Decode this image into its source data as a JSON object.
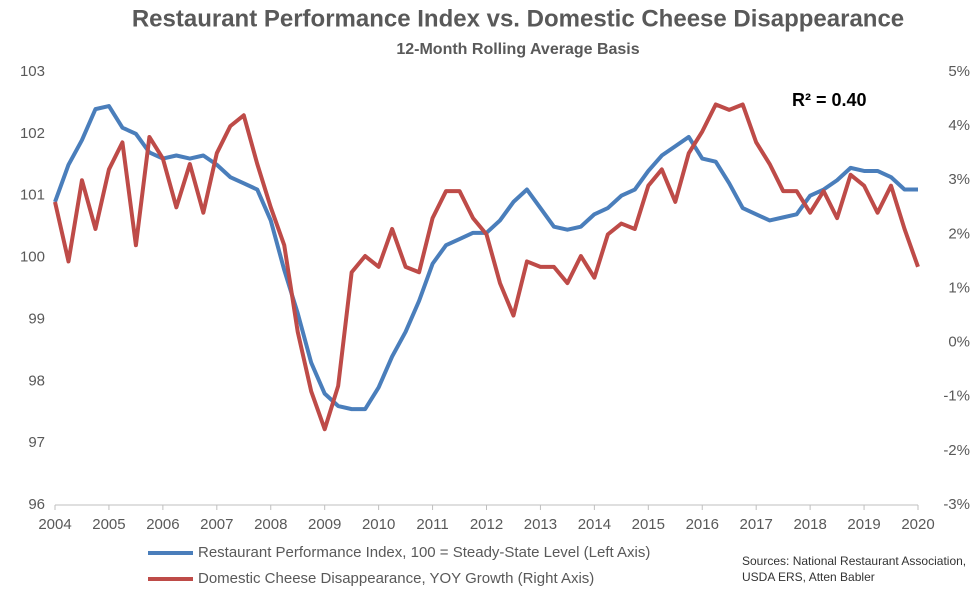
{
  "chart_data": {
    "type": "line",
    "title": "Restaurant Performance Index vs. Domestic Cheese Disappearance",
    "subtitle": "12-Month Rolling Average Basis",
    "annotation": "R² = 0.40",
    "source": "Sources: National Restaurant Association, USDA ERS, Atten Babler",
    "x": [
      2004,
      2004.25,
      2004.5,
      2004.75,
      2005,
      2005.25,
      2005.5,
      2005.75,
      2006,
      2006.25,
      2006.5,
      2006.75,
      2007,
      2007.25,
      2007.5,
      2007.75,
      2008,
      2008.25,
      2008.5,
      2008.75,
      2009,
      2009.25,
      2009.5,
      2009.75,
      2010,
      2010.25,
      2010.5,
      2010.75,
      2011,
      2011.25,
      2011.5,
      2011.75,
      2012,
      2012.25,
      2012.5,
      2012.75,
      2013,
      2013.25,
      2013.5,
      2013.75,
      2014,
      2014.25,
      2014.5,
      2014.75,
      2015,
      2015.25,
      2015.5,
      2015.75,
      2016,
      2016.25,
      2016.5,
      2016.75,
      2017,
      2017.25,
      2017.5,
      2017.75,
      2018,
      2018.25,
      2018.5,
      2018.75,
      2019,
      2019.25,
      2019.5,
      2019.75,
      2020
    ],
    "xlim": [
      2004,
      2020
    ],
    "xticks": [
      2004,
      2005,
      2006,
      2007,
      2008,
      2009,
      2010,
      2011,
      2012,
      2013,
      2014,
      2015,
      2016,
      2017,
      2018,
      2019,
      2020
    ],
    "ylim": [
      96,
      103
    ],
    "yticks": [
      96,
      97,
      98,
      99,
      100,
      101,
      102,
      103
    ],
    "y2lim": [
      -3,
      5
    ],
    "y2ticks": [
      {
        "value": -3,
        "label": "-3%"
      },
      {
        "value": -2,
        "label": "-2%"
      },
      {
        "value": -1,
        "label": "-1%"
      },
      {
        "value": 0,
        "label": "0%"
      },
      {
        "value": 1,
        "label": "1%"
      },
      {
        "value": 2,
        "label": "2%"
      },
      {
        "value": 3,
        "label": "3%"
      },
      {
        "value": 4,
        "label": "4%"
      },
      {
        "value": 5,
        "label": "5%"
      }
    ],
    "series": [
      {
        "name": "Restaurant Performance Index, 100 = Steady-State Level (Left Axis)",
        "color": "#4a7ebb",
        "axis": "y",
        "values": [
          100.9,
          101.5,
          101.9,
          102.4,
          102.45,
          102.1,
          102.0,
          101.7,
          101.6,
          101.65,
          101.6,
          101.65,
          101.5,
          101.3,
          101.2,
          101.1,
          100.6,
          99.8,
          99.1,
          98.3,
          97.8,
          97.6,
          97.55,
          97.55,
          97.9,
          98.4,
          98.8,
          99.3,
          99.9,
          100.2,
          100.3,
          100.4,
          100.4,
          100.6,
          100.9,
          101.1,
          100.8,
          100.5,
          100.45,
          100.5,
          100.7,
          100.8,
          101.0,
          101.1,
          101.4,
          101.65,
          101.8,
          101.95,
          101.6,
          101.55,
          101.2,
          100.8,
          100.7,
          100.6,
          100.65,
          100.7,
          101.0,
          101.1,
          101.25,
          101.45,
          101.4,
          101.4,
          101.3,
          101.1,
          101.1
        ]
      },
      {
        "name": "Domestic Cheese Disappearance, YOY Growth (Right Axis)",
        "color": "#be4b48",
        "axis": "y2",
        "values": [
          2.6,
          1.5,
          3.0,
          2.1,
          3.2,
          3.7,
          1.8,
          3.8,
          3.4,
          2.5,
          3.3,
          2.4,
          3.5,
          4.0,
          4.2,
          3.3,
          2.5,
          1.8,
          0.2,
          -0.9,
          -1.6,
          -0.8,
          1.3,
          1.6,
          1.4,
          2.1,
          1.4,
          1.3,
          2.3,
          2.8,
          2.8,
          2.3,
          2.0,
          1.1,
          0.5,
          1.5,
          1.4,
          1.4,
          1.1,
          1.6,
          1.2,
          2.0,
          2.2,
          2.1,
          2.9,
          3.2,
          2.6,
          3.5,
          3.9,
          4.4,
          4.3,
          4.4,
          3.7,
          3.3,
          2.8,
          2.8,
          2.4,
          2.8,
          2.3,
          3.1,
          2.9,
          2.4,
          2.9,
          2.1,
          1.4
        ]
      }
    ]
  }
}
